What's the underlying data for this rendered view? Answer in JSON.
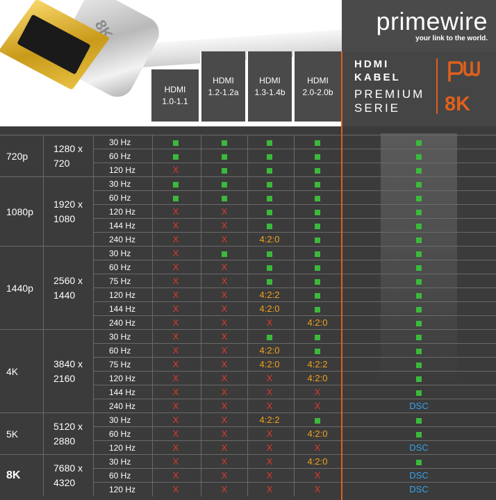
{
  "brand": {
    "name": "primewire",
    "tagline": "your link to the world."
  },
  "premium": {
    "line1": "HDMI",
    "line2": "KABEL",
    "line3": "PREMIUM",
    "line4": "SERIE",
    "badge": "8K",
    "logo_text": "pw"
  },
  "hero": {
    "housing_text": "8K"
  },
  "versions": [
    {
      "label1": "HDMI",
      "label2": "1.0-1.1"
    },
    {
      "label1": "HDMI",
      "label2": "1.2-1.2a"
    },
    {
      "label1": "HDMI",
      "label2": "1.3-1.4b"
    },
    {
      "label1": "HDMI",
      "label2": "2.0-2.0b"
    }
  ],
  "colors": {
    "accent": "#e0601c",
    "supported": "#3cb93c",
    "unsupported": "#e0392b",
    "chroma_subsampling": "#f2a21c",
    "dsc": "#36a3e8",
    "table_bg": "#3b3b3b",
    "header_bg": "#4a4a4a"
  },
  "groups": [
    {
      "resolution": "720p",
      "dimension": "1280 x\n720",
      "bold": false,
      "rows": [
        {
          "hz": "30 Hz",
          "v": [
            "ok",
            "ok",
            "ok",
            "ok",
            "ok"
          ]
        },
        {
          "hz": "60 Hz",
          "v": [
            "ok",
            "ok",
            "ok",
            "ok",
            "ok"
          ]
        },
        {
          "hz": "120 Hz",
          "v": [
            "X",
            "ok",
            "ok",
            "ok",
            "ok"
          ]
        }
      ]
    },
    {
      "resolution": "1080p",
      "dimension": "1920 x\n1080",
      "bold": false,
      "rows": [
        {
          "hz": "30 Hz",
          "v": [
            "ok",
            "ok",
            "ok",
            "ok",
            "ok"
          ]
        },
        {
          "hz": "60 Hz",
          "v": [
            "ok",
            "ok",
            "ok",
            "ok",
            "ok"
          ]
        },
        {
          "hz": "120 Hz",
          "v": [
            "X",
            "X",
            "ok",
            "ok",
            "ok"
          ]
        },
        {
          "hz": "144 Hz",
          "v": [
            "X",
            "X",
            "ok",
            "ok",
            "ok"
          ]
        },
        {
          "hz": "240 Hz",
          "v": [
            "X",
            "X",
            "4:2:0",
            "ok",
            "ok"
          ]
        }
      ]
    },
    {
      "resolution": "1440p",
      "dimension": "2560 x\n1440",
      "bold": false,
      "rows": [
        {
          "hz": "30 Hz",
          "v": [
            "X",
            "ok",
            "ok",
            "ok",
            "ok"
          ]
        },
        {
          "hz": "60 Hz",
          "v": [
            "X",
            "X",
            "ok",
            "ok",
            "ok"
          ]
        },
        {
          "hz": "75 Hz",
          "v": [
            "X",
            "X",
            "ok",
            "ok",
            "ok"
          ]
        },
        {
          "hz": "120 Hz",
          "v": [
            "X",
            "X",
            "4:2:2",
            "ok",
            "ok"
          ]
        },
        {
          "hz": "144 Hz",
          "v": [
            "X",
            "X",
            "4:2:0",
            "ok",
            "ok"
          ]
        },
        {
          "hz": "240 Hz",
          "v": [
            "X",
            "X",
            "X",
            "4:2:0",
            "ok"
          ]
        }
      ]
    },
    {
      "resolution": "4K",
      "dimension": "3840 x\n2160",
      "bold": false,
      "rows": [
        {
          "hz": "30 Hz",
          "v": [
            "X",
            "X",
            "ok",
            "ok",
            "ok"
          ]
        },
        {
          "hz": "60 Hz",
          "v": [
            "X",
            "X",
            "4:2:0",
            "ok",
            "ok"
          ]
        },
        {
          "hz": "75 Hz",
          "v": [
            "X",
            "X",
            "4:2:0",
            "4:2:2",
            "ok"
          ]
        },
        {
          "hz": "120 Hz",
          "v": [
            "X",
            "X",
            "X",
            "4:2:0",
            "ok"
          ]
        },
        {
          "hz": "144 Hz",
          "v": [
            "X",
            "X",
            "X",
            "X",
            "ok"
          ]
        },
        {
          "hz": "240 Hz",
          "v": [
            "X",
            "X",
            "X",
            "X",
            "DSC"
          ]
        }
      ]
    },
    {
      "resolution": "5K",
      "dimension": "5120 x\n2880",
      "bold": false,
      "rows": [
        {
          "hz": "30 Hz",
          "v": [
            "X",
            "X",
            "4:2:2",
            "ok",
            "ok"
          ]
        },
        {
          "hz": "60 Hz",
          "v": [
            "X",
            "X",
            "X",
            "4:2:0",
            "ok"
          ]
        },
        {
          "hz": "120 Hz",
          "v": [
            "X",
            "X",
            "X",
            "X",
            "DSC"
          ]
        }
      ]
    },
    {
      "resolution": "8K",
      "dimension": "7680 x\n4320",
      "bold": true,
      "rows": [
        {
          "hz": "30 Hz",
          "v": [
            "X",
            "X",
            "X",
            "4:2:0",
            "ok"
          ]
        },
        {
          "hz": "60 Hz",
          "v": [
            "X",
            "X",
            "X",
            "X",
            "DSC"
          ]
        },
        {
          "hz": "120 Hz",
          "v": [
            "X",
            "X",
            "X",
            "X",
            "DSC"
          ]
        }
      ]
    }
  ]
}
